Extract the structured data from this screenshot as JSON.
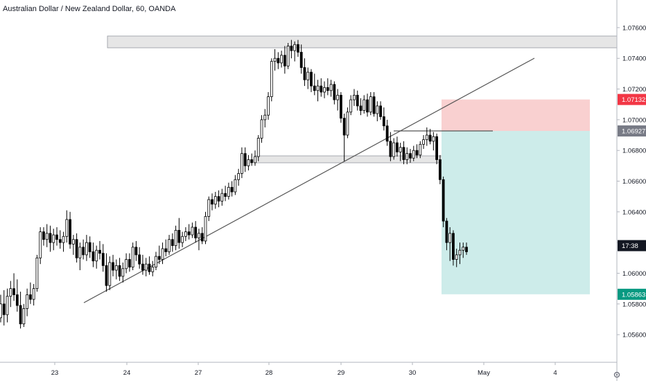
{
  "chart_data": {
    "type": "candlestick",
    "title": "Australian Dollar / New Zealand Dollar, 60, OANDA",
    "x_ticks": [
      "23",
      "24",
      "27",
      "28",
      "29",
      "30",
      "May",
      "4"
    ],
    "y_ticks": [
      "1.07600",
      "1.07400",
      "1.07200",
      "1.07000",
      "1.06800",
      "1.06600",
      "1.06400",
      "1.06200",
      "1.06000",
      "1.05800",
      "1.05600"
    ],
    "ylim": [
      1.0542,
      1.0778
    ],
    "y_step": 0.002,
    "price_labels": [
      {
        "name": "stop-loss",
        "value": "1.07132",
        "price": 1.07132,
        "color": "#f23645"
      },
      {
        "name": "entry",
        "value": "1.06927",
        "price": 1.06927,
        "color": "#787b86"
      },
      {
        "name": "current-time",
        "value": "17:38",
        "price": 1.0618,
        "color": "#131722"
      },
      {
        "name": "take-profit",
        "value": "1.05863",
        "price": 1.05863,
        "color": "#089981"
      }
    ],
    "grid": false,
    "up_color": "#ffffff",
    "down_color": "#000000",
    "candles": [
      [
        1.0571,
        1.0586,
        1.0568,
        1.058
      ],
      [
        1.058,
        1.0589,
        1.0566,
        1.0573
      ],
      [
        1.0573,
        1.059,
        1.0568,
        1.0585
      ],
      [
        1.0585,
        1.0595,
        1.0578,
        1.059
      ],
      [
        1.059,
        1.06,
        1.0582,
        1.0586
      ],
      [
        1.0586,
        1.0596,
        1.0575,
        1.0579
      ],
      [
        1.0579,
        1.0588,
        1.0564,
        1.0567
      ],
      [
        1.0567,
        1.058,
        1.0565,
        1.0577
      ],
      [
        1.0577,
        1.059,
        1.0572,
        1.0586
      ],
      [
        1.0586,
        1.0594,
        1.058,
        1.0583
      ],
      [
        1.0583,
        1.0593,
        1.0579,
        1.059
      ],
      [
        1.059,
        1.0612,
        1.0588,
        1.061
      ],
      [
        1.061,
        1.063,
        1.0606,
        1.0627
      ],
      [
        1.0627,
        1.063,
        1.0618,
        1.0622
      ],
      [
        1.0622,
        1.0632,
        1.0617,
        1.0626
      ],
      [
        1.0626,
        1.0631,
        1.0614,
        1.062
      ],
      [
        1.062,
        1.0629,
        1.0615,
        1.0625
      ],
      [
        1.0625,
        1.063,
        1.0618,
        1.0622
      ],
      [
        1.0622,
        1.0628,
        1.0616,
        1.062
      ],
      [
        1.062,
        1.0627,
        1.0614,
        1.0624
      ],
      [
        1.0624,
        1.0641,
        1.062,
        1.0635
      ],
      [
        1.0635,
        1.064,
        1.0616,
        1.0619
      ],
      [
        1.0619,
        1.0625,
        1.0612,
        1.0622
      ],
      [
        1.0622,
        1.0626,
        1.0607,
        1.061
      ],
      [
        1.061,
        1.062,
        1.0602,
        1.0617
      ],
      [
        1.0617,
        1.0622,
        1.0609,
        1.0612
      ],
      [
        1.0612,
        1.0625,
        1.0608,
        1.062
      ],
      [
        1.062,
        1.0624,
        1.061,
        1.0614
      ],
      [
        1.0614,
        1.062,
        1.0604,
        1.0608
      ],
      [
        1.0608,
        1.0618,
        1.0603,
        1.0615
      ],
      [
        1.0615,
        1.0621,
        1.0609,
        1.0613
      ],
      [
        1.0613,
        1.0619,
        1.0601,
        1.0605
      ],
      [
        1.0605,
        1.0613,
        1.0588,
        1.0592
      ],
      [
        1.0592,
        1.0611,
        1.0589,
        1.0607
      ],
      [
        1.0607,
        1.0612,
        1.0598,
        1.0602
      ],
      [
        1.0602,
        1.0609,
        1.0596,
        1.0605
      ],
      [
        1.0605,
        1.061,
        1.0595,
        1.0598
      ],
      [
        1.0598,
        1.0607,
        1.0594,
        1.0603
      ],
      [
        1.0603,
        1.0613,
        1.06,
        1.0609
      ],
      [
        1.0609,
        1.0613,
        1.0601,
        1.0604
      ],
      [
        1.0604,
        1.062,
        1.0602,
        1.0617
      ],
      [
        1.0617,
        1.0621,
        1.0608,
        1.0612
      ],
      [
        1.0612,
        1.0617,
        1.0603,
        1.0606
      ],
      [
        1.0606,
        1.0612,
        1.0599,
        1.0602
      ],
      [
        1.0602,
        1.061,
        1.0598,
        1.0606
      ],
      [
        1.0606,
        1.0611,
        1.0599,
        1.0601
      ],
      [
        1.0601,
        1.0608,
        1.0598,
        1.0604
      ],
      [
        1.0604,
        1.0614,
        1.0602,
        1.0611
      ],
      [
        1.0611,
        1.0618,
        1.0606,
        1.0609
      ],
      [
        1.0609,
        1.062,
        1.0606,
        1.0616
      ],
      [
        1.0616,
        1.0622,
        1.0611,
        1.0614
      ],
      [
        1.0614,
        1.0625,
        1.0612,
        1.0622
      ],
      [
        1.0622,
        1.0626,
        1.0614,
        1.0618
      ],
      [
        1.0618,
        1.0631,
        1.0615,
        1.0628
      ],
      [
        1.0628,
        1.0636,
        1.0616,
        1.062
      ],
      [
        1.062,
        1.0627,
        1.0617,
        1.0624
      ],
      [
        1.0624,
        1.063,
        1.0621,
        1.0627
      ],
      [
        1.0627,
        1.0632,
        1.0622,
        1.0625
      ],
      [
        1.0625,
        1.0633,
        1.0623,
        1.063
      ],
      [
        1.063,
        1.0634,
        1.062,
        1.0623
      ],
      [
        1.0623,
        1.0629,
        1.0615,
        1.0626
      ],
      [
        1.0626,
        1.063,
        1.0619,
        1.0621
      ],
      [
        1.0621,
        1.064,
        1.0619,
        1.0637
      ],
      [
        1.0637,
        1.065,
        1.0634,
        1.0648
      ],
      [
        1.0648,
        1.0652,
        1.0641,
        1.0645
      ],
      [
        1.0645,
        1.0653,
        1.0642,
        1.065
      ],
      [
        1.065,
        1.0654,
        1.0643,
        1.0647
      ],
      [
        1.0647,
        1.0655,
        1.0644,
        1.0652
      ],
      [
        1.0652,
        1.0657,
        1.0647,
        1.065
      ],
      [
        1.065,
        1.0659,
        1.0648,
        1.0656
      ],
      [
        1.0656,
        1.066,
        1.065,
        1.0653
      ],
      [
        1.0653,
        1.0664,
        1.0651,
        1.0661
      ],
      [
        1.0661,
        1.0668,
        1.0657,
        1.0665
      ],
      [
        1.0665,
        1.0682,
        1.0662,
        1.0678
      ],
      [
        1.0678,
        1.0682,
        1.0666,
        1.067
      ],
      [
        1.067,
        1.0677,
        1.0667,
        1.0674
      ],
      [
        1.0674,
        1.0678,
        1.067,
        1.0672
      ],
      [
        1.0672,
        1.068,
        1.067,
        1.0676
      ],
      [
        1.0676,
        1.069,
        1.0673,
        1.0688
      ],
      [
        1.0688,
        1.0703,
        1.0685,
        1.07
      ],
      [
        1.07,
        1.0707,
        1.0695,
        1.0703
      ],
      [
        1.0703,
        1.0718,
        1.07,
        1.0715
      ],
      [
        1.0715,
        1.074,
        1.0712,
        1.0738
      ],
      [
        1.0738,
        1.0746,
        1.0732,
        1.074
      ],
      [
        1.074,
        1.0744,
        1.0733,
        1.0737
      ],
      [
        1.0737,
        1.0745,
        1.0734,
        1.0742
      ],
      [
        1.0742,
        1.0748,
        1.073,
        1.0735
      ],
      [
        1.0735,
        1.075,
        1.0733,
        1.0748
      ],
      [
        1.0748,
        1.0752,
        1.074,
        1.0745
      ],
      [
        1.0745,
        1.0751,
        1.0738,
        1.0749
      ],
      [
        1.0749,
        1.0752,
        1.0741,
        1.0744
      ],
      [
        1.0744,
        1.0749,
        1.073,
        1.0734
      ],
      [
        1.0734,
        1.074,
        1.0722,
        1.0726
      ],
      [
        1.0726,
        1.0734,
        1.072,
        1.0731
      ],
      [
        1.0731,
        1.0733,
        1.0718,
        1.0722
      ],
      [
        1.0722,
        1.073,
        1.0716,
        1.0719
      ],
      [
        1.0719,
        1.0726,
        1.0712,
        1.0722
      ],
      [
        1.0722,
        1.0727,
        1.0715,
        1.0718
      ],
      [
        1.0718,
        1.0725,
        1.0714,
        1.0721
      ],
      [
        1.0721,
        1.0727,
        1.0716,
        1.0719
      ],
      [
        1.0719,
        1.0726,
        1.0715,
        1.0723
      ],
      [
        1.0723,
        1.0725,
        1.071,
        1.0713
      ],
      [
        1.0713,
        1.072,
        1.0706,
        1.0716
      ],
      [
        1.0716,
        1.0718,
        1.0698,
        1.0701
      ],
      [
        1.0701,
        1.0704,
        1.0673,
        1.069
      ],
      [
        1.069,
        1.0708,
        1.0688,
        1.0705
      ],
      [
        1.0705,
        1.0716,
        1.0703,
        1.0713
      ],
      [
        1.0713,
        1.072,
        1.0709,
        1.0716
      ],
      [
        1.0716,
        1.0719,
        1.0706,
        1.0709
      ],
      [
        1.0709,
        1.0714,
        1.0703,
        1.0706
      ],
      [
        1.0706,
        1.0716,
        1.0704,
        1.0713
      ],
      [
        1.0713,
        1.0717,
        1.0702,
        1.0705
      ],
      [
        1.0705,
        1.0718,
        1.0703,
        1.0715
      ],
      [
        1.0715,
        1.0718,
        1.0702,
        1.0704
      ],
      [
        1.0704,
        1.0712,
        1.0699,
        1.0709
      ],
      [
        1.0709,
        1.0712,
        1.07,
        1.0702
      ],
      [
        1.0702,
        1.0708,
        1.0693,
        1.0696
      ],
      [
        1.0696,
        1.07,
        1.0683,
        1.0686
      ],
      [
        1.0686,
        1.0692,
        1.0673,
        1.0676
      ],
      [
        1.0676,
        1.0688,
        1.0674,
        1.0685
      ],
      [
        1.0685,
        1.0689,
        1.0676,
        1.0679
      ],
      [
        1.0679,
        1.0685,
        1.0673,
        1.0682
      ],
      [
        1.0682,
        1.0686,
        1.0671,
        1.0674
      ],
      [
        1.0674,
        1.0682,
        1.0671,
        1.0678
      ],
      [
        1.0678,
        1.0681,
        1.0672,
        1.0675
      ],
      [
        1.0675,
        1.0683,
        1.0673,
        1.068
      ],
      [
        1.068,
        1.0684,
        1.0675,
        1.0677
      ],
      [
        1.0677,
        1.0686,
        1.0675,
        1.0684
      ],
      [
        1.0684,
        1.069,
        1.0681,
        1.0687
      ],
      [
        1.0687,
        1.0695,
        1.0683,
        1.069
      ],
      [
        1.069,
        1.0694,
        1.0684,
        1.0686
      ],
      [
        1.0686,
        1.0692,
        1.068,
        1.0689
      ],
      [
        1.0689,
        1.0691,
        1.0671,
        1.0674
      ],
      [
        1.0674,
        1.0677,
        1.0658,
        1.0661
      ],
      [
        1.0661,
        1.0663,
        1.063,
        1.0634
      ],
      [
        1.0634,
        1.0636,
        1.0615,
        1.062
      ],
      [
        1.062,
        1.063,
        1.0608,
        1.0626
      ],
      [
        1.0626,
        1.0628,
        1.0605,
        1.0609
      ],
      [
        1.0609,
        1.0616,
        1.0604,
        1.0612
      ],
      [
        1.0612,
        1.062,
        1.0606,
        1.0615
      ],
      [
        1.0615,
        1.062,
        1.061,
        1.0617
      ],
      [
        1.0617,
        1.062,
        1.0612,
        1.0614
      ]
    ]
  },
  "axis_labels": {
    "price_axis": "price-axis",
    "time_axis": "time-axis"
  }
}
